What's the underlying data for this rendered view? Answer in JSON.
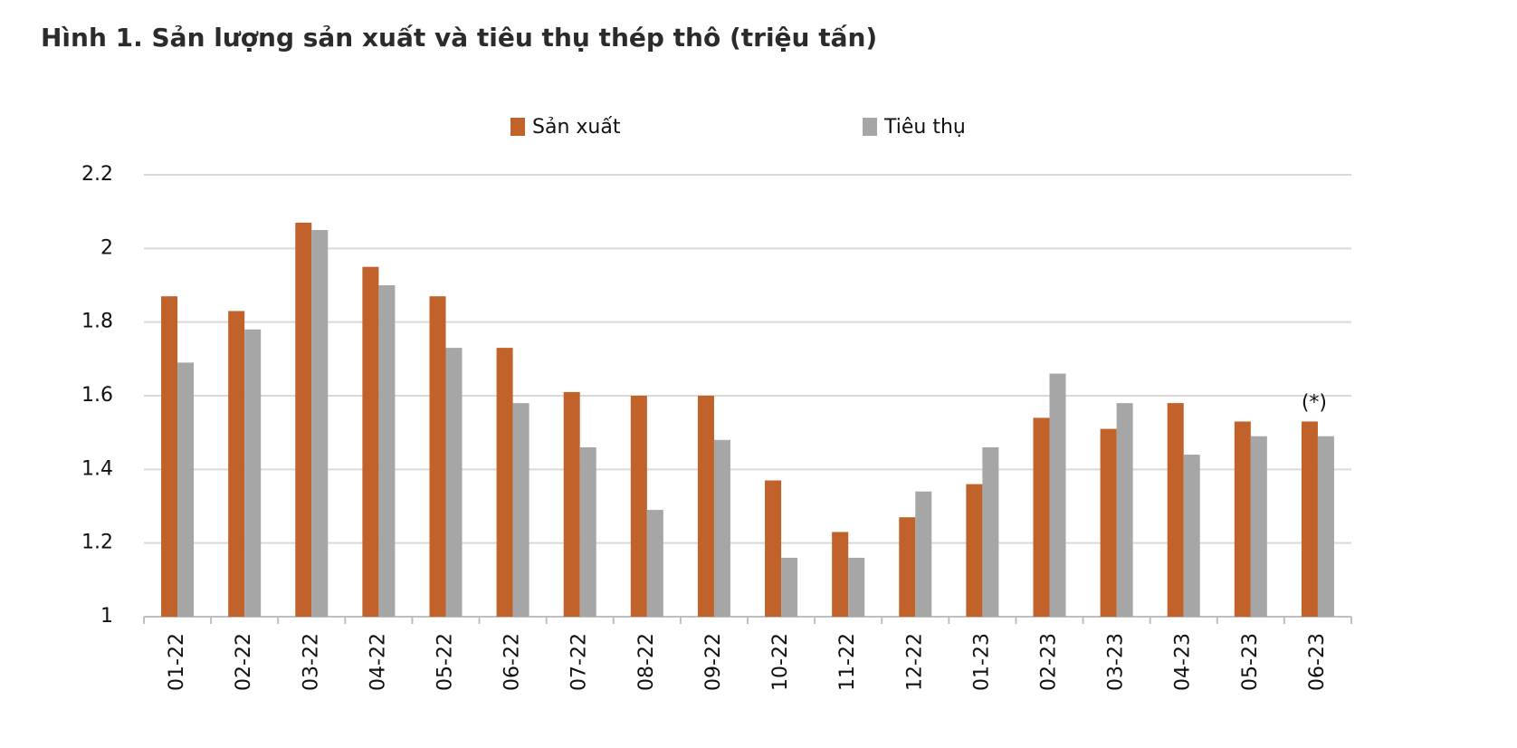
{
  "chart_data": {
    "type": "bar",
    "title": "Hình 1. Sản lượng sản xuất và tiêu thụ thép thô (triệu tấn)",
    "categories": [
      "01-22",
      "02-22",
      "03-22",
      "04-22",
      "05-22",
      "06-22",
      "07-22",
      "08-22",
      "09-22",
      "10-22",
      "11-22",
      "12-22",
      "01-23",
      "02-23",
      "03-23",
      "04-23",
      "05-23",
      "06-23"
    ],
    "series": [
      {
        "name": "Sản xuất",
        "color": "#c0622a",
        "values": [
          1.87,
          1.83,
          2.07,
          1.95,
          1.87,
          1.73,
          1.61,
          1.6,
          1.6,
          1.37,
          1.23,
          1.27,
          1.36,
          1.54,
          1.51,
          1.58,
          1.53,
          1.53
        ]
      },
      {
        "name": "Tiêu thụ",
        "color": "#a6a6a6",
        "values": [
          1.69,
          1.78,
          2.05,
          1.9,
          1.73,
          1.58,
          1.46,
          1.29,
          1.48,
          1.16,
          1.16,
          1.34,
          1.46,
          1.66,
          1.58,
          1.44,
          1.49,
          1.49
        ]
      }
    ],
    "annotation": "(*)",
    "ylim": [
      1,
      2.2
    ],
    "yticks": [
      1,
      1.2,
      1.4,
      1.6,
      1.8,
      2,
      2.2
    ],
    "grid": true
  }
}
